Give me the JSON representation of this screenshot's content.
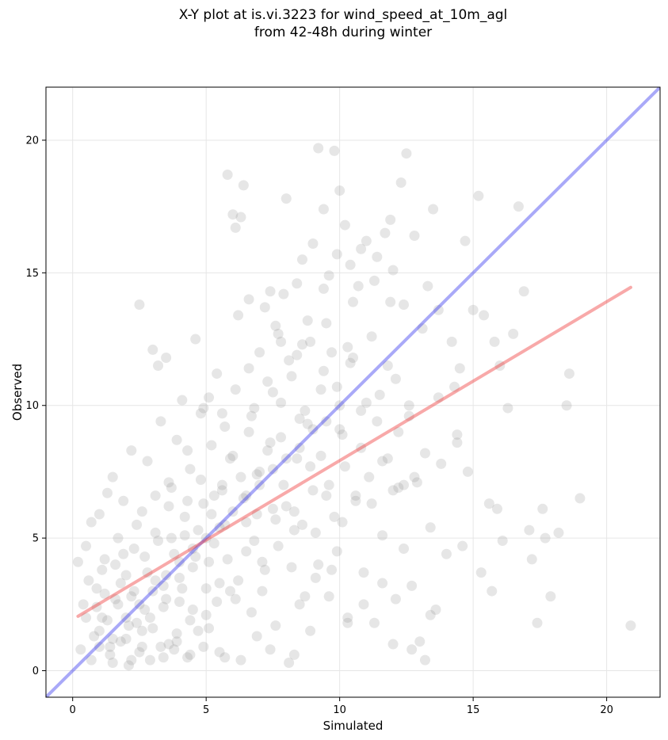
{
  "chart_data": {
    "type": "scatter",
    "title_lines": [
      "X-Y plot at is.vi.3223 for wind_speed_at_10m_agl",
      "from 42-48h during winter"
    ],
    "xlabel": "Simulated",
    "ylabel": "Observed",
    "xlim": [
      -1,
      22
    ],
    "ylim": [
      -1,
      22
    ],
    "xticks": [
      0,
      5,
      10,
      15,
      20
    ],
    "yticks": [
      0,
      5,
      10,
      15,
      20
    ],
    "grid": true,
    "legend": "none",
    "point_color": "#808080",
    "point_alpha": 0.2,
    "lines": [
      {
        "role": "one-to-one",
        "color": "#3333ee",
        "x": [
          -1,
          22
        ],
        "y": [
          -1,
          22
        ]
      },
      {
        "role": "regression-fit",
        "color": "#ee3333",
        "x": [
          0.2,
          20.9
        ],
        "y": [
          2.05,
          14.45
        ]
      }
    ],
    "points": [
      [
        0.2,
        4.1
      ],
      [
        0.3,
        0.8
      ],
      [
        0.4,
        2.5
      ],
      [
        0.5,
        4.7
      ],
      [
        0.6,
        3.4
      ],
      [
        0.7,
        5.6
      ],
      [
        0.8,
        1.3
      ],
      [
        0.9,
        3.1
      ],
      [
        1.0,
        5.9
      ],
      [
        1.1,
        2.0
      ],
      [
        1.2,
        4.2
      ],
      [
        1.3,
        6.7
      ],
      [
        1.4,
        0.9
      ],
      [
        1.5,
        7.3
      ],
      [
        1.6,
        2.7
      ],
      [
        1.7,
        5.0
      ],
      [
        1.8,
        1.1
      ],
      [
        1.9,
        6.4
      ],
      [
        2.0,
        3.6
      ],
      [
        2.1,
        0.2
      ],
      [
        2.2,
        8.3
      ],
      [
        2.3,
        4.6
      ],
      [
        2.4,
        1.8
      ],
      [
        2.5,
        13.8
      ],
      [
        2.6,
        6.0
      ],
      [
        2.7,
        2.3
      ],
      [
        2.8,
        7.9
      ],
      [
        2.9,
        0.4
      ],
      [
        3.0,
        12.1
      ],
      [
        3.1,
        5.2
      ],
      [
        3.2,
        11.5
      ],
      [
        3.3,
        9.4
      ],
      [
        3.4,
        3.2
      ],
      [
        3.5,
        11.8
      ],
      [
        3.6,
        1.0
      ],
      [
        3.7,
        6.9
      ],
      [
        3.8,
        4.4
      ],
      [
        3.9,
        8.7
      ],
      [
        4.0,
        2.6
      ],
      [
        4.1,
        10.2
      ],
      [
        4.2,
        5.8
      ],
      [
        4.3,
        0.5
      ],
      [
        4.4,
        7.6
      ],
      [
        4.5,
        3.9
      ],
      [
        4.6,
        12.5
      ],
      [
        4.7,
        1.5
      ],
      [
        4.8,
        9.7
      ],
      [
        4.9,
        6.3
      ],
      [
        5.0,
        2.1
      ],
      [
        5.1,
        10.3
      ],
      [
        5.2,
        8.5
      ],
      [
        5.3,
        4.8
      ],
      [
        5.4,
        11.2
      ],
      [
        5.5,
        0.7
      ],
      [
        5.6,
        7.0
      ],
      [
        5.7,
        9.2
      ],
      [
        5.8,
        18.7
      ],
      [
        5.9,
        3.0
      ],
      [
        6.0,
        17.2
      ],
      [
        6.1,
        16.7
      ],
      [
        6.2,
        13.4
      ],
      [
        6.3,
        17.1
      ],
      [
        6.4,
        18.3
      ],
      [
        6.5,
        5.6
      ],
      [
        6.6,
        11.4
      ],
      [
        6.7,
        2.2
      ],
      [
        6.8,
        9.9
      ],
      [
        6.9,
        7.4
      ],
      [
        7.0,
        12.0
      ],
      [
        7.1,
        4.1
      ],
      [
        7.2,
        13.7
      ],
      [
        7.3,
        10.9
      ],
      [
        7.4,
        14.3
      ],
      [
        7.5,
        6.1
      ],
      [
        7.6,
        1.7
      ],
      [
        7.7,
        12.7
      ],
      [
        7.8,
        8.8
      ],
      [
        7.9,
        14.2
      ],
      [
        8.0,
        17.8
      ],
      [
        8.1,
        0.3
      ],
      [
        8.2,
        11.1
      ],
      [
        8.3,
        5.3
      ],
      [
        8.4,
        14.6
      ],
      [
        8.5,
        9.5
      ],
      [
        8.6,
        12.3
      ],
      [
        8.7,
        2.8
      ],
      [
        8.8,
        13.2
      ],
      [
        8.9,
        7.7
      ],
      [
        9.0,
        16.1
      ],
      [
        9.1,
        3.5
      ],
      [
        9.2,
        19.7
      ],
      [
        9.3,
        10.6
      ],
      [
        9.4,
        17.4
      ],
      [
        9.5,
        6.6
      ],
      [
        9.6,
        14.9
      ],
      [
        9.7,
        12.0
      ],
      [
        9.8,
        19.6
      ],
      [
        9.9,
        4.5
      ],
      [
        10.0,
        18.1
      ],
      [
        10.1,
        8.9
      ],
      [
        10.2,
        16.8
      ],
      [
        10.3,
        2.0
      ],
      [
        10.4,
        15.3
      ],
      [
        10.5,
        11.8
      ],
      [
        10.6,
        6.4
      ],
      [
        10.7,
        14.5
      ],
      [
        10.8,
        9.8
      ],
      [
        10.9,
        3.7
      ],
      [
        11.0,
        16.2
      ],
      [
        11.1,
        7.3
      ],
      [
        11.2,
        12.6
      ],
      [
        11.3,
        1.8
      ],
      [
        11.4,
        15.6
      ],
      [
        11.5,
        10.4
      ],
      [
        11.6,
        5.1
      ],
      [
        11.7,
        16.5
      ],
      [
        11.8,
        8.0
      ],
      [
        11.9,
        13.9
      ],
      [
        12.0,
        1.0
      ],
      [
        12.1,
        11.0
      ],
      [
        12.2,
        6.9
      ],
      [
        12.3,
        18.4
      ],
      [
        12.4,
        4.6
      ],
      [
        12.5,
        19.5
      ],
      [
        12.6,
        9.6
      ],
      [
        12.7,
        3.2
      ],
      [
        12.8,
        16.4
      ],
      [
        12.9,
        7.1
      ],
      [
        13.0,
        1.1
      ],
      [
        13.1,
        12.9
      ],
      [
        13.2,
        8.2
      ],
      [
        13.3,
        14.5
      ],
      [
        13.4,
        5.4
      ],
      [
        13.5,
        17.4
      ],
      [
        13.6,
        2.3
      ],
      [
        13.7,
        13.6
      ],
      [
        13.8,
        7.8
      ],
      [
        14.0,
        4.4
      ],
      [
        14.2,
        12.4
      ],
      [
        14.3,
        10.7
      ],
      [
        14.4,
        8.9
      ],
      [
        14.5,
        11.4
      ],
      [
        14.6,
        4.7
      ],
      [
        14.7,
        16.2
      ],
      [
        14.8,
        7.5
      ],
      [
        15.0,
        13.6
      ],
      [
        15.2,
        17.9
      ],
      [
        15.3,
        3.7
      ],
      [
        15.4,
        13.4
      ],
      [
        15.6,
        6.3
      ],
      [
        15.7,
        3.0
      ],
      [
        15.8,
        12.4
      ],
      [
        16.0,
        11.5
      ],
      [
        16.1,
        4.9
      ],
      [
        16.3,
        9.9
      ],
      [
        16.5,
        12.7
      ],
      [
        16.7,
        17.5
      ],
      [
        16.9,
        14.3
      ],
      [
        17.1,
        5.3
      ],
      [
        17.2,
        4.2
      ],
      [
        17.4,
        1.8
      ],
      [
        17.6,
        6.1
      ],
      [
        17.7,
        5.0
      ],
      [
        17.9,
        2.8
      ],
      [
        18.2,
        5.2
      ],
      [
        18.6,
        11.2
      ],
      [
        18.5,
        10.0
      ],
      [
        19.0,
        6.5
      ],
      [
        20.9,
        1.7
      ],
      [
        15.9,
        6.1
      ],
      [
        1.0,
        1.5
      ],
      [
        1.2,
        2.9
      ],
      [
        1.4,
        0.6
      ],
      [
        1.6,
        4.0
      ],
      [
        1.8,
        3.3
      ],
      [
        2.0,
        1.2
      ],
      [
        2.2,
        2.8
      ],
      [
        2.4,
        5.5
      ],
      [
        2.6,
        0.9
      ],
      [
        2.8,
        3.7
      ],
      [
        3.0,
        1.6
      ],
      [
        3.2,
        4.9
      ],
      [
        3.4,
        2.4
      ],
      [
        3.6,
        6.2
      ],
      [
        3.8,
        0.8
      ],
      [
        4.0,
        3.5
      ],
      [
        4.2,
        5.1
      ],
      [
        4.4,
        1.9
      ],
      [
        4.6,
        4.3
      ],
      [
        4.8,
        7.2
      ],
      [
        5.0,
        3.1
      ],
      [
        5.2,
        5.9
      ],
      [
        5.4,
        2.6
      ],
      [
        5.6,
        6.8
      ],
      [
        5.8,
        4.2
      ],
      [
        6.0,
        8.1
      ],
      [
        6.2,
        3.4
      ],
      [
        6.4,
        6.5
      ],
      [
        6.6,
        9.0
      ],
      [
        6.8,
        4.9
      ],
      [
        7.0,
        7.5
      ],
      [
        7.2,
        3.8
      ],
      [
        7.4,
        8.6
      ],
      [
        7.6,
        5.7
      ],
      [
        7.8,
        10.1
      ],
      [
        8.0,
        6.2
      ],
      [
        8.2,
        3.9
      ],
      [
        8.4,
        8.0
      ],
      [
        8.6,
        5.5
      ],
      [
        8.8,
        9.3
      ],
      [
        9.0,
        6.8
      ],
      [
        9.2,
        4.0
      ],
      [
        9.4,
        11.3
      ],
      [
        9.6,
        7.0
      ],
      [
        9.8,
        5.8
      ],
      [
        10.0,
        9.1
      ],
      [
        10.2,
        7.7
      ],
      [
        10.4,
        11.6
      ],
      [
        10.6,
        6.6
      ],
      [
        10.8,
        8.4
      ],
      [
        11.0,
        10.1
      ],
      [
        11.2,
        6.3
      ],
      [
        11.4,
        9.4
      ],
      [
        11.6,
        7.9
      ],
      [
        11.8,
        11.5
      ],
      [
        12.0,
        6.8
      ],
      [
        12.2,
        9.0
      ],
      [
        12.4,
        7.0
      ],
      [
        12.6,
        10.0
      ],
      [
        12.8,
        7.3
      ],
      [
        0.5,
        2.0
      ],
      [
        0.7,
        0.4
      ],
      [
        0.9,
        2.4
      ],
      [
        1.1,
        3.8
      ],
      [
        1.3,
        1.9
      ],
      [
        1.5,
        0.3
      ],
      [
        1.7,
        2.5
      ],
      [
        1.9,
        4.4
      ],
      [
        2.1,
        1.7
      ],
      [
        2.3,
        3.0
      ],
      [
        2.5,
        0.7
      ],
      [
        2.7,
        4.3
      ],
      [
        2.9,
        2.0
      ],
      [
        3.1,
        3.4
      ],
      [
        3.3,
        0.9
      ],
      [
        3.5,
        2.7
      ],
      [
        3.7,
        5.0
      ],
      [
        3.9,
        1.4
      ],
      [
        4.1,
        3.1
      ],
      [
        4.3,
        6.4
      ],
      [
        4.5,
        2.3
      ],
      [
        4.7,
        5.3
      ],
      [
        4.9,
        0.9
      ],
      [
        5.1,
        4.1
      ],
      [
        5.3,
        6.6
      ],
      [
        5.5,
        3.3
      ],
      [
        5.7,
        5.5
      ],
      [
        5.9,
        8.0
      ],
      [
        6.1,
        2.7
      ],
      [
        6.3,
        7.3
      ],
      [
        6.5,
        4.5
      ],
      [
        6.7,
        9.6
      ],
      [
        6.9,
        5.9
      ],
      [
        7.1,
        3.0
      ],
      [
        7.3,
        8.3
      ],
      [
        7.5,
        10.5
      ],
      [
        7.7,
        4.7
      ],
      [
        7.9,
        7.0
      ],
      [
        8.1,
        11.7
      ],
      [
        8.3,
        6.0
      ],
      [
        8.5,
        2.5
      ],
      [
        8.7,
        9.8
      ],
      [
        8.9,
        12.4
      ],
      [
        9.1,
        5.2
      ],
      [
        9.3,
        8.1
      ],
      [
        9.5,
        13.1
      ],
      [
        9.7,
        3.8
      ],
      [
        9.9,
        10.7
      ],
      [
        10.1,
        5.6
      ],
      [
        10.3,
        12.2
      ],
      [
        1.0,
        0.9
      ],
      [
        1.5,
        1.2
      ],
      [
        2.0,
        2.0
      ],
      [
        2.5,
        2.5
      ],
      [
        3.0,
        3.0
      ],
      [
        3.5,
        3.6
      ],
      [
        4.0,
        4.1
      ],
      [
        4.5,
        4.6
      ],
      [
        5.0,
        5.0
      ],
      [
        5.5,
        5.4
      ],
      [
        6.0,
        6.0
      ],
      [
        6.5,
        6.6
      ],
      [
        7.0,
        7.0
      ],
      [
        7.5,
        7.6
      ],
      [
        8.0,
        8.0
      ],
      [
        8.5,
        8.4
      ],
      [
        9.0,
        9.1
      ],
      [
        9.5,
        9.4
      ],
      [
        10.0,
        10.0
      ],
      [
        2.2,
        0.4
      ],
      [
        2.6,
        1.5
      ],
      [
        3.4,
        0.5
      ],
      [
        3.9,
        1.1
      ],
      [
        4.4,
        0.6
      ],
      [
        5.1,
        1.6
      ],
      [
        5.7,
        0.5
      ],
      [
        6.3,
        0.4
      ],
      [
        6.9,
        1.3
      ],
      [
        7.4,
        0.8
      ],
      [
        8.3,
        0.6
      ],
      [
        8.9,
        1.5
      ],
      [
        9.6,
        2.8
      ],
      [
        10.3,
        1.8
      ],
      [
        10.9,
        2.5
      ],
      [
        11.6,
        3.3
      ],
      [
        12.1,
        2.7
      ],
      [
        12.7,
        0.8
      ],
      [
        13.2,
        0.4
      ],
      [
        13.4,
        2.1
      ],
      [
        6.6,
        14.0
      ],
      [
        7.6,
        13.0
      ],
      [
        8.6,
        15.5
      ],
      [
        9.9,
        15.7
      ],
      [
        10.8,
        15.9
      ],
      [
        11.3,
        14.7
      ],
      [
        11.9,
        17.0
      ],
      [
        12.4,
        13.8
      ],
      [
        13.7,
        10.3
      ],
      [
        14.4,
        8.6
      ],
      [
        12.0,
        15.1
      ],
      [
        10.5,
        13.9
      ],
      [
        9.4,
        14.4
      ],
      [
        8.4,
        11.9
      ],
      [
        7.8,
        12.4
      ],
      [
        6.1,
        10.6
      ],
      [
        5.6,
        9.7
      ],
      [
        4.9,
        9.9
      ],
      [
        4.3,
        8.3
      ],
      [
        3.6,
        7.1
      ],
      [
        3.1,
        6.6
      ]
    ]
  }
}
